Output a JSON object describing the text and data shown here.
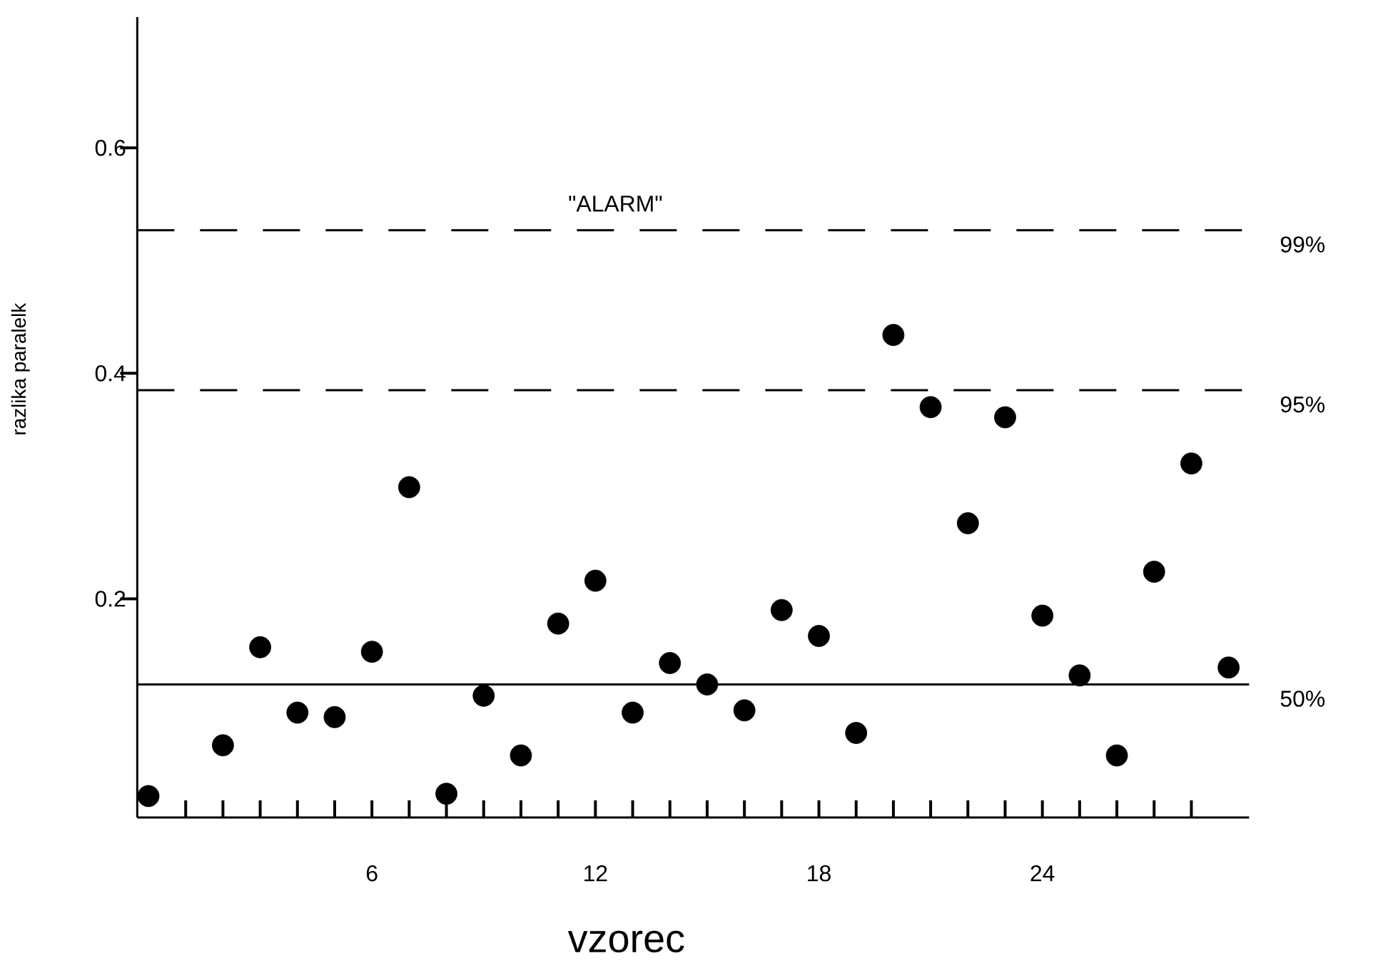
{
  "chart_data": {
    "type": "scatter",
    "xlabel": "vzorec",
    "ylabel": "razlika  paralelk",
    "x": [
      0,
      2,
      3,
      4,
      5,
      6,
      7,
      8,
      9,
      10,
      11,
      12,
      13,
      14,
      15,
      16,
      17,
      18,
      19,
      20,
      21,
      22,
      23,
      24,
      25,
      26,
      27,
      28,
      29
    ],
    "values": [
      0.025,
      0.07,
      0.157,
      0.099,
      0.095,
      0.153,
      0.299,
      0.027,
      0.114,
      0.061,
      0.178,
      0.216,
      0.099,
      0.143,
      0.124,
      0.101,
      0.19,
      0.167,
      0.081,
      0.434,
      0.37,
      0.267,
      0.361,
      0.185,
      0.132,
      0.061,
      0.224,
      0.32,
      0.139
    ],
    "color": "#000000",
    "marker": "circle",
    "xlim": [
      -0.3,
      29.55
    ],
    "ylim": [
      0.006,
      0.716
    ],
    "xticks": [
      {
        "value": 1,
        "label": null
      },
      {
        "value": 2,
        "label": null
      },
      {
        "value": 3,
        "label": null
      },
      {
        "value": 4,
        "label": null
      },
      {
        "value": 5,
        "label": null
      },
      6,
      {
        "value": 7,
        "label": null
      },
      {
        "value": 8,
        "label": null
      },
      {
        "value": 9,
        "label": null
      },
      {
        "value": 10,
        "label": null
      },
      {
        "value": 11,
        "label": null
      },
      12,
      {
        "value": 13,
        "label": null
      },
      {
        "value": 14,
        "label": null
      },
      {
        "value": 15,
        "label": null
      },
      {
        "value": 16,
        "label": null
      },
      {
        "value": 17,
        "label": null
      },
      18,
      {
        "value": 19,
        "label": null
      },
      {
        "value": 20,
        "label": null
      },
      {
        "value": 21,
        "label": null
      },
      {
        "value": 22,
        "label": null
      },
      {
        "value": 23,
        "label": null
      },
      24,
      {
        "value": 25,
        "label": null
      },
      {
        "value": 26,
        "label": null
      },
      {
        "value": 27,
        "label": null
      },
      {
        "value": 28,
        "label": null
      }
    ],
    "yticks": [
      0.2,
      0.4,
      0.6
    ],
    "ref_lines": [
      {
        "axis": "y",
        "value": 0.527,
        "line_style": "dashed",
        "color": "#000000"
      },
      {
        "axis": "y",
        "value": 0.385,
        "line_style": "dashed",
        "color": "#000000"
      },
      {
        "axis": "y",
        "value": 0.124,
        "line_style": "solid",
        "color": "#000000"
      }
    ],
    "annotations": [
      "\"ALARM\"",
      "99%",
      "95%",
      "50%"
    ]
  }
}
